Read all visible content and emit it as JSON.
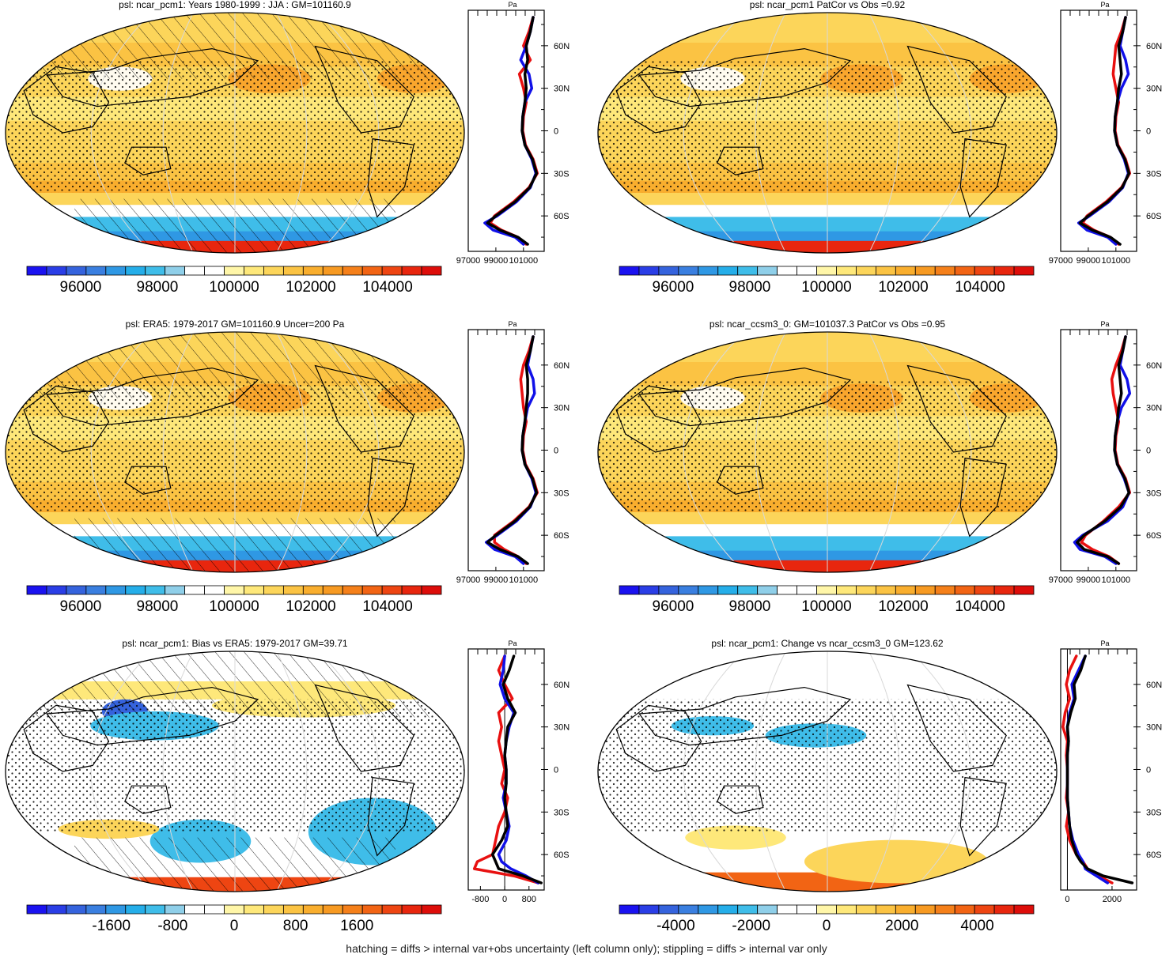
{
  "footer": "hatching = diffs > internal var+obs uncertainty (left column only); stippling = diffs > internal var only",
  "colors": {
    "obs_line": "#000000",
    "model_line": "#1010e8",
    "ref_line": "#e81010",
    "palette_abs": [
      "#1a12f0",
      "#2a3ee6",
      "#3563dd",
      "#3a7fe0",
      "#2f98e4",
      "#25aee9",
      "#3fbde9",
      "#8fcfe9",
      "#ffffff",
      "#ffffff",
      "#fff6a8",
      "#fee87a",
      "#fcd55a",
      "#fbc343",
      "#f9ae2e",
      "#f79a22",
      "#f5801a",
      "#f26414",
      "#ee4512",
      "#e8260e",
      "#dd0d0a"
    ],
    "palette_diff": [
      "#1a12f0",
      "#2a3ee6",
      "#3563dd",
      "#3a7fe0",
      "#2f98e4",
      "#25aee9",
      "#3fbde9",
      "#8fcfe9",
      "#ffffff",
      "#ffffff",
      "#fff6a8",
      "#fee87a",
      "#fcd55a",
      "#fbc343",
      "#f9ae2e",
      "#f79a22",
      "#f5801a",
      "#f26414",
      "#ee4512",
      "#e8260e",
      "#dd0d0a"
    ]
  },
  "chart_data": [
    {
      "type": "heatmap",
      "title": "psl: ncar_pcm1: Years 1980-1999 : JJA : GM=101160.9",
      "colorbar": {
        "labels": [
          "96000",
          "98000",
          "100000",
          "102000",
          "104000"
        ],
        "range": [
          94600,
          105400
        ]
      },
      "profile": {
        "unit": "Pa",
        "xticks": [
          "97000",
          "99000",
          "101000"
        ],
        "xrange": [
          97000,
          102500
        ],
        "lat_ticks": [
          "60N",
          "30N",
          "0",
          "30S",
          "60S"
        ],
        "lat": [
          80,
          70,
          60,
          50,
          40,
          30,
          20,
          10,
          0,
          -10,
          -20,
          -30,
          -40,
          -50,
          -60,
          -65,
          -70,
          -75,
          -80
        ],
        "series": [
          {
            "name": "ncar_pcm1",
            "color_key": "model_line",
            "values": [
              101700,
              101500,
              101200,
              100800,
              101400,
              101600,
              101100,
              100950,
              100900,
              101100,
              101600,
              101900,
              101500,
              100500,
              99100,
              98200,
              98800,
              100400,
              101000
            ]
          },
          {
            "name": "ERA5",
            "color_key": "ref_line",
            "values": [
              101700,
              101400,
              101000,
              101500,
              100700,
              101000,
              101200,
              101000,
              100950,
              101150,
              101700,
              102000,
              101400,
              100300,
              98900,
              98600,
              99400,
              100600,
              101200
            ]
          },
          {
            "name": "obs",
            "color_key": "obs_line",
            "values": [
              101700,
              101500,
              101200,
              101300,
              101100,
              101200,
              101100,
              100950,
              100900,
              101100,
              101650,
              101950,
              101450,
              100400,
              99000,
              98400,
              99300,
              100600,
              101300
            ]
          }
        ]
      }
    },
    {
      "type": "heatmap",
      "title": "psl: ncar_pcm1 PatCor vs Obs =0.92",
      "colorbar": {
        "labels": [
          "96000",
          "98000",
          "100000",
          "102000",
          "104000"
        ],
        "range": [
          94600,
          105400
        ]
      },
      "profile": {
        "unit": "Pa",
        "xticks": [
          "97000",
          "99000",
          "101000"
        ],
        "xrange": [
          97000,
          102500
        ],
        "lat_ticks": [
          "60N",
          "30N",
          "0",
          "30S",
          "60S"
        ],
        "lat": [
          80,
          70,
          60,
          50,
          40,
          30,
          20,
          10,
          0,
          -10,
          -20,
          -30,
          -40,
          -50,
          -60,
          -65,
          -70,
          -75,
          -80
        ],
        "series": [
          {
            "name": "ncar_pcm1",
            "color_key": "model_line",
            "values": [
              101700,
              101500,
              101300,
              101700,
              101900,
              101400,
              101100,
              100950,
              100900,
              101100,
              101600,
              101900,
              101500,
              100500,
              99100,
              98300,
              98900,
              100400,
              101000
            ]
          },
          {
            "name": "ERA5",
            "color_key": "ref_line",
            "values": [
              101700,
              101400,
              101000,
              100900,
              100800,
              101000,
              101200,
              101000,
              100950,
              101150,
              101700,
              102000,
              101400,
              100300,
              98900,
              98600,
              99400,
              100600,
              101200
            ]
          },
          {
            "name": "obs",
            "color_key": "obs_line",
            "values": [
              101700,
              101500,
              101200,
              101300,
              101400,
              101200,
              101100,
              100950,
              100900,
              101100,
              101650,
              101950,
              101450,
              100400,
              99000,
              98400,
              99300,
              100600,
              101300
            ]
          }
        ]
      }
    },
    {
      "type": "heatmap",
      "title": "psl: ERA5: 1979-2017 GM=101160.9 Uncer=200 Pa",
      "colorbar": {
        "labels": [
          "96000",
          "98000",
          "100000",
          "102000",
          "104000"
        ],
        "range": [
          94600,
          105400
        ]
      },
      "profile": {
        "unit": "Pa",
        "xticks": [
          "97000",
          "99000",
          "101000"
        ],
        "xrange": [
          97000,
          102500
        ],
        "lat_ticks": [
          "60N",
          "30N",
          "0",
          "30S",
          "60S"
        ],
        "lat": [
          80,
          70,
          60,
          50,
          40,
          30,
          20,
          10,
          0,
          -10,
          -20,
          -30,
          -40,
          -50,
          -60,
          -65,
          -70,
          -75,
          -80
        ],
        "series": [
          {
            "name": "ncar_pcm1",
            "color_key": "model_line",
            "values": [
              101700,
              101500,
              101300,
              101700,
              101800,
              101300,
              101100,
              100950,
              100900,
              101100,
              101600,
              101900,
              101500,
              100500,
              99100,
              98300,
              98900,
              100400,
              101000
            ]
          },
          {
            "name": "ERA5",
            "color_key": "ref_line",
            "values": [
              101700,
              101400,
              101000,
              100800,
              100900,
              101000,
              101200,
              101000,
              100950,
              101150,
              101700,
              102000,
              101400,
              100300,
              98900,
              98900,
              99600,
              100600,
              101200
            ]
          },
          {
            "name": "obs",
            "color_key": "obs_line",
            "values": [
              101700,
              101500,
              101200,
              101300,
              101300,
              101200,
              101100,
              100950,
              100900,
              101100,
              101650,
              101950,
              101450,
              100400,
              99000,
              98400,
              99300,
              100600,
              101300
            ]
          }
        ]
      }
    },
    {
      "type": "heatmap",
      "title": "psl: ncar_ccsm3_0: GM=101037.3 PatCor vs Obs =0.95",
      "colorbar": {
        "labels": [
          "96000",
          "98000",
          "100000",
          "102000",
          "104000"
        ],
        "range": [
          94600,
          105400
        ]
      },
      "profile": {
        "unit": "Pa",
        "xticks": [
          "97000",
          "99000",
          "101000"
        ],
        "xrange": [
          97000,
          102500
        ],
        "lat_ticks": [
          "60N",
          "30N",
          "0",
          "30S",
          "60S"
        ],
        "lat": [
          80,
          70,
          60,
          50,
          40,
          30,
          20,
          10,
          0,
          -10,
          -20,
          -30,
          -40,
          -50,
          -60,
          -65,
          -70,
          -75,
          -80
        ],
        "series": [
          {
            "name": "ncar_ccsm3_0",
            "color_key": "model_line",
            "values": [
              101700,
              101500,
              101300,
              101800,
              102000,
              101400,
              101100,
              100950,
              100900,
              101100,
              101600,
              101950,
              101500,
              100400,
              98600,
              98000,
              98400,
              100200,
              101000
            ]
          },
          {
            "name": "ERA5",
            "color_key": "ref_line",
            "values": [
              101700,
              101400,
              101000,
              100700,
              100800,
              101000,
              101200,
              101000,
              100950,
              101150,
              101700,
              102000,
              101200,
              100100,
              98800,
              98500,
              99300,
              100500,
              101200
            ]
          },
          {
            "name": "obs",
            "color_key": "obs_line",
            "values": [
              101700,
              101500,
              101200,
              101300,
              101400,
              101200,
              101100,
              100950,
              100900,
              101100,
              101650,
              101950,
              101350,
              100200,
              98700,
              98200,
              98700,
              100400,
              101200
            ]
          }
        ]
      }
    },
    {
      "type": "heatmap",
      "title": "psl: ncar_pcm1: Bias vs ERA5: 1979-2017 GM=39.71",
      "colorbar": {
        "labels": [
          "-1600",
          "-800",
          "0",
          "800",
          "1600"
        ],
        "range": [
          -2700,
          2700
        ]
      },
      "profile": {
        "unit": "Pa",
        "xticks": [
          "-800",
          "0",
          "800"
        ],
        "xrange": [
          -1200,
          1300
        ],
        "zero_line": 0,
        "lat_ticks": [
          "60N",
          "30N",
          "0",
          "30S",
          "60S"
        ],
        "lat": [
          80,
          70,
          60,
          50,
          40,
          30,
          20,
          10,
          0,
          -10,
          -20,
          -30,
          -40,
          -50,
          -60,
          -65,
          -70,
          -75,
          -80
        ],
        "series": [
          {
            "name": "ncar_pcm1",
            "color_key": "model_line",
            "values": [
              0,
              -50,
              -150,
              0,
              300,
              150,
              50,
              0,
              50,
              50,
              -50,
              50,
              150,
              50,
              -200,
              -100,
              200,
              700,
              1100
            ]
          },
          {
            "name": "ERA5",
            "color_key": "ref_line",
            "values": [
              0,
              -200,
              0,
              250,
              -200,
              -100,
              -200,
              -100,
              0,
              -100,
              100,
              0,
              -200,
              -300,
              -400,
              -900,
              -1000,
              300,
              1100
            ]
          },
          {
            "name": "obs",
            "color_key": "obs_line",
            "values": [
              300,
              150,
              -50,
              100,
              350,
              100,
              50,
              0,
              50,
              50,
              0,
              50,
              100,
              -100,
              -400,
              -300,
              -200,
              600,
              1200
            ]
          }
        ]
      }
    },
    {
      "type": "heatmap",
      "title": "psl: ncar_pcm1: Change vs ncar_ccsm3_0 GM=123.62",
      "colorbar": {
        "labels": [
          "-4000",
          "-2000",
          "0",
          "2000",
          "4000"
        ],
        "range": [
          -5500,
          5500
        ]
      },
      "profile": {
        "unit": "Pa",
        "xticks": [
          "0",
          "2000"
        ],
        "xrange": [
          -300,
          3100
        ],
        "zero_line": 0,
        "lat_ticks": [
          "60N",
          "30N",
          "0",
          "30S",
          "60S"
        ],
        "lat": [
          80,
          70,
          60,
          50,
          40,
          30,
          20,
          10,
          0,
          -10,
          -20,
          -30,
          -40,
          -50,
          -60,
          -65,
          -70,
          -75,
          -80
        ],
        "series": [
          {
            "name": "ncar_pcm1",
            "color_key": "model_line",
            "values": [
              800,
              500,
              200,
              300,
              100,
              0,
              50,
              0,
              0,
              0,
              0,
              50,
              100,
              250,
              500,
              700,
              800,
              1300,
              1800
            ]
          },
          {
            "name": "ERA5",
            "color_key": "ref_line",
            "values": [
              400,
              100,
              -50,
              100,
              -100,
              -200,
              0,
              -50,
              0,
              0,
              -50,
              50,
              -50,
              100,
              400,
              700,
              900,
              1400,
              2000
            ]
          },
          {
            "name": "obs",
            "color_key": "obs_line",
            "values": [
              800,
              600,
              300,
              350,
              150,
              0,
              50,
              0,
              0,
              0,
              0,
              50,
              100,
              200,
              400,
              600,
              900,
              1600,
              2900
            ]
          }
        ]
      }
    }
  ]
}
